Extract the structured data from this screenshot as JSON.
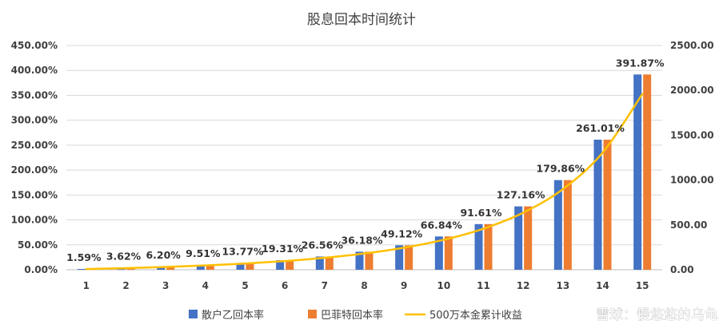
{
  "chart_data": {
    "type": "bar",
    "title": "股息回本时间统计",
    "categories": [
      "1",
      "2",
      "3",
      "4",
      "5",
      "6",
      "7",
      "8",
      "9",
      "10",
      "11",
      "12",
      "13",
      "14",
      "15"
    ],
    "series": [
      {
        "name": "散户乙回本率",
        "axis": "left",
        "color": "#4472C4",
        "values": [
          1.59,
          3.62,
          6.2,
          9.51,
          13.77,
          19.31,
          26.56,
          36.18,
          49.12,
          66.84,
          91.61,
          127.16,
          179.86,
          261.01,
          391.87
        ]
      },
      {
        "name": "巴菲特回本率",
        "axis": "left",
        "color": "#ED7D31",
        "values": [
          1.59,
          3.62,
          6.2,
          9.51,
          13.77,
          19.31,
          26.56,
          36.18,
          49.12,
          66.84,
          91.61,
          127.16,
          179.86,
          261.01,
          391.87
        ]
      },
      {
        "name": "500万本金累计收益",
        "type": "line",
        "axis": "right",
        "color": "#FFC000",
        "values": [
          8,
          18,
          31,
          48,
          69,
          97,
          133,
          181,
          246,
          334,
          458,
          636,
          899,
          1305,
          1959
        ]
      }
    ],
    "data_labels": [
      "1.59%",
      "3.62%",
      "6.20%",
      "9.51%",
      "13.77%",
      "19.31%",
      "26.56%",
      "36.18%",
      "49.12%",
      "66.84%",
      "91.61%",
      "127.16%",
      "179.86%",
      "261.01%",
      "391.87%"
    ],
    "y_left": {
      "min": 0,
      "max": 450,
      "ticks": [
        0,
        50,
        100,
        150,
        200,
        250,
        300,
        350,
        400,
        450
      ],
      "tick_labels": [
        "0.00%",
        "50.00%",
        "100.00%",
        "150.00%",
        "200.00%",
        "250.00%",
        "300.00%",
        "350.00%",
        "400.00%",
        "450.00%"
      ]
    },
    "y_right": {
      "min": 0,
      "max": 2500,
      "ticks": [
        0,
        500,
        1000,
        1500,
        2000,
        2500
      ],
      "tick_labels": [
        "0.00",
        "500.00",
        "1000.00",
        "1500.00",
        "2000.00",
        "2500.00"
      ]
    },
    "grid": true,
    "legend": "bottom"
  },
  "watermark": "雪球：慢悠悠的乌龟"
}
